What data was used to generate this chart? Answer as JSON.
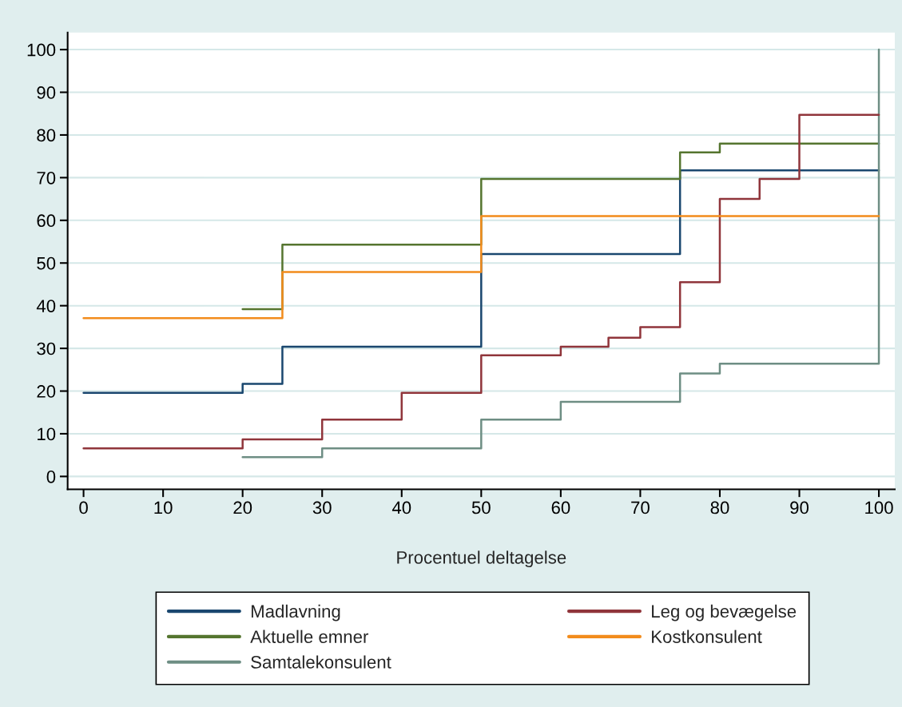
{
  "chart_data": {
    "type": "step",
    "xlabel": "Procentuel deltagelse",
    "xlim": [
      -2,
      102
    ],
    "ylim": [
      -3,
      104
    ],
    "xticks": [
      0,
      10,
      20,
      30,
      40,
      50,
      60,
      70,
      80,
      90,
      100
    ],
    "yticks": [
      0,
      10,
      20,
      30,
      40,
      50,
      60,
      70,
      80,
      90,
      100
    ],
    "grid": "y",
    "legend": "bottom",
    "line_style": "solid",
    "series": [
      {
        "name": "Madlavning",
        "color": "#1a476f",
        "x": [
          0,
          20,
          25,
          50,
          75,
          100
        ],
        "values": [
          19.6,
          21.7,
          30.4,
          52.1,
          71.7,
          71.7
        ]
      },
      {
        "name": "Aktuelle emner",
        "color": "#55752f",
        "x": [
          20,
          25,
          50,
          75,
          80,
          100
        ],
        "values": [
          39.2,
          54.3,
          69.7,
          75.9,
          78.0,
          78.0
        ]
      },
      {
        "name": "Samtalekonsulent",
        "color": "#6e8e84",
        "x": [
          20,
          30,
          50,
          60,
          75,
          80,
          100
        ],
        "values": [
          4.5,
          6.6,
          13.3,
          17.5,
          24.1,
          26.4,
          100
        ]
      },
      {
        "name": "Leg og bevægelse",
        "color": "#90353b",
        "x": [
          0,
          20,
          30,
          40,
          50,
          60,
          66,
          70,
          75,
          80,
          85,
          90,
          100
        ],
        "values": [
          6.6,
          8.7,
          13.3,
          19.6,
          28.4,
          30.4,
          32.5,
          35.0,
          45.5,
          65.0,
          69.7,
          84.7,
          84.7
        ]
      },
      {
        "name": "Kostkonsulent",
        "color": "#f28c1c",
        "x": [
          0,
          25,
          50,
          100
        ],
        "values": [
          37.1,
          47.9,
          61.0,
          61.0
        ]
      }
    ]
  }
}
